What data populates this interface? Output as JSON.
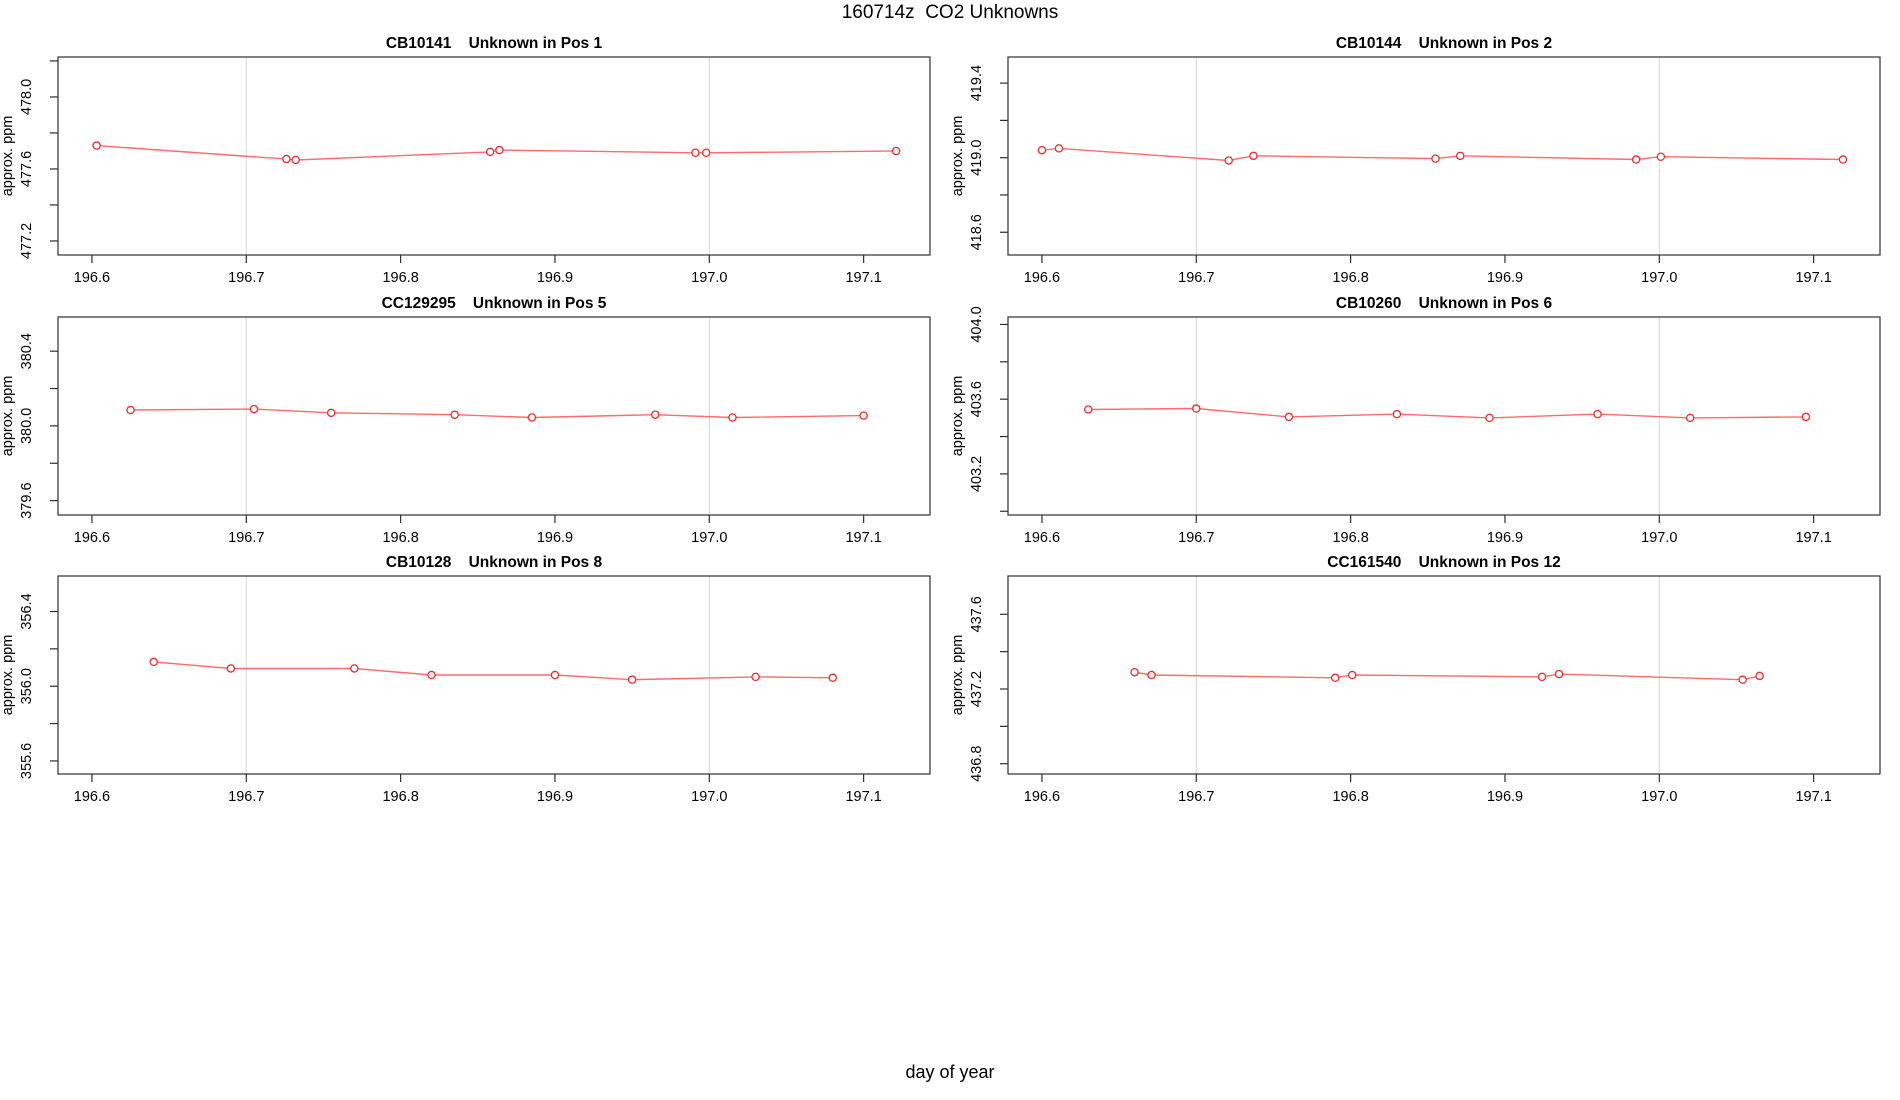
{
  "page": {
    "title": "160714z  CO2 Unknowns",
    "xlabel": "day of year"
  },
  "colors": {
    "line": "#ff6b6b",
    "marker": "#f02b2b",
    "grid": "#dcdcdc",
    "frame": "#2e2e2e",
    "text": "#000000",
    "background": "#ffffff"
  },
  "axes_shared": {
    "xlim": [
      196.578,
      197.143
    ],
    "xticks": [
      {
        "v": 196.6,
        "label": "196.6"
      },
      {
        "v": 196.7,
        "label": "196.7"
      },
      {
        "v": 196.8,
        "label": "196.8"
      },
      {
        "v": 196.9,
        "label": "196.9"
      },
      {
        "v": 197.0,
        "label": "197.0"
      },
      {
        "v": 197.1,
        "label": "197.1"
      }
    ],
    "grid_x": [
      196.7,
      197.0
    ]
  },
  "chart_data": [
    {
      "type": "line",
      "name": "CB10141",
      "desc": "Unknown in Pos 1",
      "ylabel": "approx. ppm",
      "ylim": [
        477.122,
        478.222
      ],
      "yticks": [
        {
          "v": 477.2,
          "label": "477.2"
        },
        {
          "v": 477.4,
          "label": ""
        },
        {
          "v": 477.6,
          "label": "477.6"
        },
        {
          "v": 477.8,
          "label": ""
        },
        {
          "v": 478.0,
          "label": "478.0"
        },
        {
          "v": 478.2,
          "label": ""
        }
      ],
      "x": [
        196.603,
        196.726,
        196.732,
        196.858,
        196.864,
        196.991,
        196.998,
        197.121
      ],
      "y": [
        477.73,
        477.655,
        477.65,
        477.695,
        477.705,
        477.69,
        477.69,
        477.7
      ]
    },
    {
      "type": "line",
      "name": "CB10144",
      "desc": "Unknown in Pos 2",
      "ylabel": "approx. ppm",
      "ylim": [
        418.478,
        419.54
      ],
      "yticks": [
        {
          "v": 418.6,
          "label": "418.6"
        },
        {
          "v": 418.8,
          "label": ""
        },
        {
          "v": 419.0,
          "label": "419.0"
        },
        {
          "v": 419.2,
          "label": ""
        },
        {
          "v": 419.4,
          "label": "419.4"
        }
      ],
      "x": [
        196.6,
        196.611,
        196.721,
        196.737,
        196.855,
        196.871,
        196.985,
        197.001,
        197.119
      ],
      "y": [
        419.04,
        419.05,
        418.985,
        419.01,
        418.995,
        419.01,
        418.99,
        419.005,
        418.99
      ]
    },
    {
      "type": "line",
      "name": "CC129295",
      "desc": "Unknown in Pos 5",
      "ylabel": "approx. ppm",
      "ylim": [
        379.523,
        380.583
      ],
      "yticks": [
        {
          "v": 379.6,
          "label": "379.6"
        },
        {
          "v": 379.8,
          "label": ""
        },
        {
          "v": 380.0,
          "label": "380.0"
        },
        {
          "v": 380.2,
          "label": ""
        },
        {
          "v": 380.4,
          "label": "380.4"
        }
      ],
      "x": [
        196.625,
        196.705,
        196.755,
        196.835,
        196.885,
        196.965,
        197.015,
        197.1
      ],
      "y": [
        380.085,
        380.09,
        380.07,
        380.06,
        380.045,
        380.06,
        380.045,
        380.055
      ]
    },
    {
      "type": "line",
      "name": "CB10260",
      "desc": "Unknown in Pos 6",
      "ylabel": "approx. ppm",
      "ylim": [
        402.98,
        404.04
      ],
      "yticks": [
        {
          "v": 403.0,
          "label": ""
        },
        {
          "v": 403.2,
          "label": "403.2"
        },
        {
          "v": 403.4,
          "label": ""
        },
        {
          "v": 403.6,
          "label": "403.6"
        },
        {
          "v": 403.8,
          "label": ""
        },
        {
          "v": 404.0,
          "label": "404.0"
        }
      ],
      "x": [
        196.63,
        196.7,
        196.76,
        196.83,
        196.89,
        196.96,
        197.02,
        197.095
      ],
      "y": [
        403.545,
        403.55,
        403.505,
        403.52,
        403.5,
        403.52,
        403.5,
        403.505
      ]
    },
    {
      "type": "line",
      "name": "CB10128",
      "desc": "Unknown in Pos 8",
      "ylabel": "approx. ppm",
      "ylim": [
        355.53,
        356.59
      ],
      "yticks": [
        {
          "v": 355.6,
          "label": "355.6"
        },
        {
          "v": 355.8,
          "label": ""
        },
        {
          "v": 356.0,
          "label": "356.0"
        },
        {
          "v": 356.2,
          "label": ""
        },
        {
          "v": 356.4,
          "label": "356.4"
        }
      ],
      "x": [
        196.64,
        196.69,
        196.77,
        196.82,
        196.9,
        196.95,
        197.03,
        197.08
      ],
      "y": [
        356.13,
        356.095,
        356.095,
        356.06,
        356.06,
        356.035,
        356.05,
        356.045
      ]
    },
    {
      "type": "line",
      "name": "CC161540",
      "desc": "Unknown in Pos 12",
      "ylabel": "approx. ppm",
      "ylim": [
        436.745,
        437.805
      ],
      "yticks": [
        {
          "v": 436.8,
          "label": "436.8"
        },
        {
          "v": 437.0,
          "label": ""
        },
        {
          "v": 437.2,
          "label": "437.2"
        },
        {
          "v": 437.4,
          "label": ""
        },
        {
          "v": 437.6,
          "label": "437.6"
        }
      ],
      "x": [
        196.66,
        196.671,
        196.79,
        196.801,
        196.924,
        196.935,
        197.054,
        197.065
      ],
      "y": [
        437.29,
        437.275,
        437.26,
        437.275,
        437.265,
        437.28,
        437.25,
        437.27
      ]
    }
  ]
}
